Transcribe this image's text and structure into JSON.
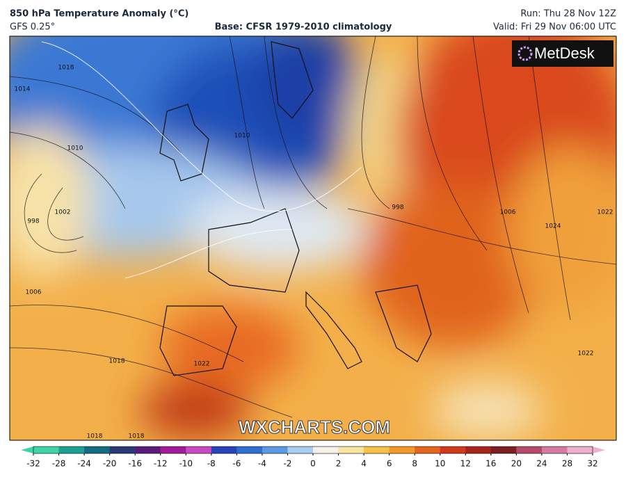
{
  "header": {
    "title": "850 hPa Temperature Anomaly (°C)",
    "model": "GFS 0.25°",
    "base": "Base: CFSR 1979-2010 climatology",
    "run": "Run: Thu 28 Nov 12Z",
    "valid": "Valid: Fri 29 Nov 06:00 UTC"
  },
  "logo": "MetDesk",
  "watermark": "WXCHARTS.COM",
  "colorbar": {
    "ticks": [
      -32,
      -28,
      -24,
      -20,
      -16,
      -12,
      -10,
      -8,
      -6,
      -4,
      -2,
      0,
      2,
      4,
      6,
      8,
      10,
      12,
      16,
      20,
      24,
      28,
      32
    ],
    "colors": [
      "#3fd3a6",
      "#1e9f92",
      "#126d80",
      "#2a3a78",
      "#5a1c7a",
      "#a01a9a",
      "#c84ac0",
      "#2744b8",
      "#2f6fd0",
      "#5b9ae0",
      "#a8cdf0",
      "#f5f2ec",
      "#f7e6a0",
      "#f6c24a",
      "#f19a2a",
      "#e6651e",
      "#d03a1a",
      "#a8241a",
      "#7a1f22",
      "#b54a6a",
      "#d57aa0",
      "#eeb0cc"
    ]
  },
  "isobar_labels": [
    "1018",
    "1014",
    "1010",
    "1002",
    "998",
    "1006",
    "1010",
    "998",
    "1006",
    "1024",
    "1022",
    "1018",
    "1022",
    "1022",
    "1018",
    "1018"
  ]
}
